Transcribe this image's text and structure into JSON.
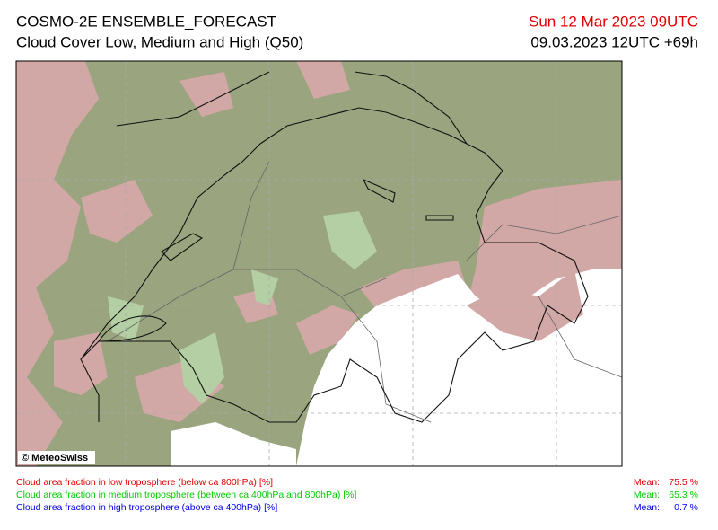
{
  "header": {
    "title": "COSMO-2E ENSEMBLE_FORECAST",
    "subtitle": "Cloud Cover Low, Medium and High (Q50)",
    "valid_time": "Sun 12 Mar 2023 09UTC",
    "run_info": "09.03.2023 12UTC +69h"
  },
  "map": {
    "credit": "© MeteoSwiss"
  },
  "legend": {
    "items": [
      {
        "label": "Cloud area fraction in low troposphere (below ca 800hPa) [%]",
        "color": "#e00000",
        "mean_label": "Mean:",
        "mean_value": "75.5 %"
      },
      {
        "label": "Cloud area fraction in medium troposphere (between ca 400hPa and 800hPa) [%]",
        "color": "#00cc00",
        "mean_label": "Mean:",
        "mean_value": "65.3 %"
      },
      {
        "label": "Cloud area fraction in high troposphere (above ca 400hPa) [%]",
        "color": "#0000ee",
        "mean_label": "Mean:",
        "mean_value": "0.7 %"
      }
    ]
  }
}
